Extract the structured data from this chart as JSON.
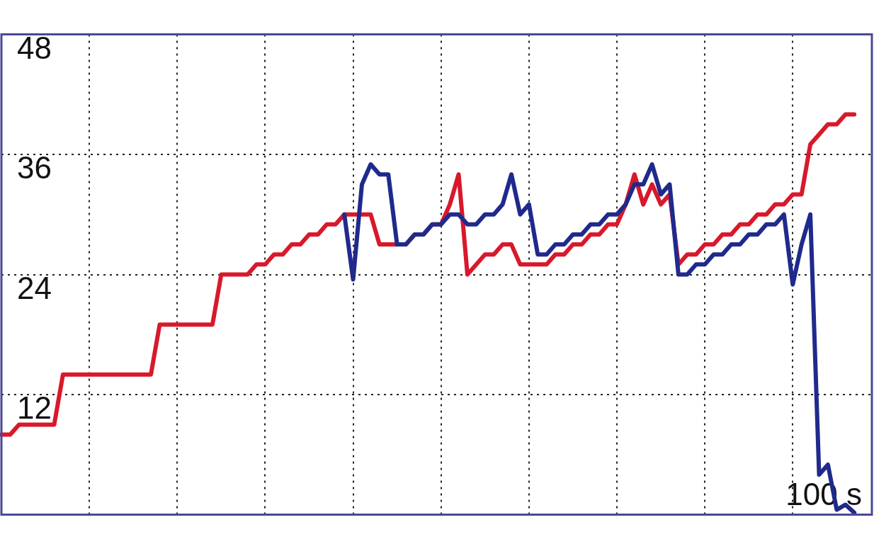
{
  "chart_data": {
    "type": "line",
    "categories": [
      null,
      null,
      null,
      null,
      null,
      null,
      null,
      null,
      null,
      null,
      null,
      null,
      null,
      null,
      null,
      null,
      null,
      null,
      null,
      null,
      null,
      null,
      null,
      null,
      null,
      null,
      null,
      null,
      null,
      null,
      null,
      null,
      null,
      null,
      null,
      null,
      null,
      null,
      null,
      null,
      null,
      null,
      null,
      null,
      null,
      null,
      null,
      null,
      null,
      null,
      null,
      null,
      null,
      null,
      null,
      null,
      null,
      null,
      null,
      null,
      null,
      null,
      null,
      null,
      null,
      null,
      null,
      null,
      null,
      null,
      null,
      null,
      null,
      null,
      null,
      null,
      null,
      null,
      null,
      null,
      null,
      null,
      null,
      null,
      null,
      null,
      null,
      null,
      null,
      null,
      null,
      null,
      null,
      null,
      null,
      null,
      null,
      null,
      null,
      null
    ],
    "ylim": [
      0,
      48
    ],
    "yticks": [
      12,
      24,
      36,
      48
    ],
    "tick_labels": "y",
    "annotations": [
      "100 s"
    ],
    "grid": true,
    "legend": false,
    "marker": "none",
    "line_style": "solid",
    "series": [
      {
        "color": "#1f2a8c",
        "values": [
          null,
          null,
          null,
          null,
          null,
          null,
          null,
          null,
          null,
          null,
          null,
          null,
          null,
          null,
          null,
          null,
          null,
          null,
          null,
          null,
          null,
          null,
          null,
          null,
          null,
          null,
          null,
          null,
          null,
          null,
          null,
          null,
          null,
          null,
          null,
          null,
          null,
          null,
          null,
          30,
          23.5,
          33,
          35,
          34,
          34,
          27,
          27,
          28,
          28,
          29,
          29,
          30,
          30,
          29,
          29,
          30,
          30,
          31,
          34,
          30,
          31,
          26,
          26,
          27,
          27,
          28,
          28,
          29,
          29,
          30,
          30,
          31,
          33,
          33,
          35,
          32,
          33,
          24,
          24,
          25,
          25,
          26,
          26,
          27,
          27,
          28,
          28,
          29,
          29,
          30,
          23,
          27,
          30,
          4,
          5,
          0.5,
          1,
          0.2,
          null,
          null
        ]
      },
      {
        "color": "#d8192b",
        "values": [
          8,
          8,
          9,
          9,
          9,
          9,
          9,
          14,
          14,
          14,
          14,
          14,
          14,
          14,
          14,
          14,
          14,
          14,
          19,
          19,
          19,
          19,
          19,
          19,
          19,
          24,
          24,
          24,
          24,
          25,
          25,
          26,
          26,
          27,
          27,
          28,
          28,
          29,
          29,
          30,
          30,
          30,
          30,
          27,
          27,
          27,
          27,
          28,
          28,
          29,
          29,
          31,
          34,
          24,
          25,
          26,
          26,
          27,
          27,
          25,
          25,
          25,
          25,
          26,
          26,
          27,
          27,
          28,
          28,
          29,
          29,
          31,
          34,
          31,
          33,
          31,
          32,
          25,
          26,
          26,
          27,
          27,
          28,
          28,
          29,
          29,
          30,
          30,
          31,
          31,
          32,
          32,
          37,
          38,
          39,
          39,
          40,
          40,
          null,
          null
        ]
      }
    ]
  }
}
